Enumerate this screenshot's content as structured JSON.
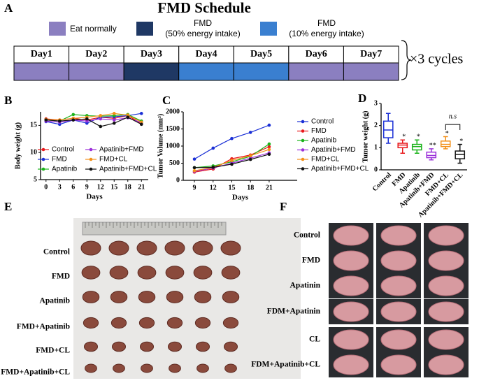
{
  "panel_labels": [
    "A",
    "B",
    "C",
    "D",
    "E",
    "F"
  ],
  "schedule": {
    "title": "FMD Schedule",
    "legend": [
      {
        "label": [
          "Eat normally"
        ],
        "color": "#8b7fc0"
      },
      {
        "label": [
          "FMD",
          "(50% energy intake)"
        ],
        "color": "#1f3864"
      },
      {
        "label": [
          "FMD",
          "(10% energy intake)"
        ],
        "color": "#3a7fd0"
      }
    ],
    "days": [
      "Day1",
      "Day2",
      "Day3",
      "Day4",
      "Day5",
      "Day6",
      "Day7"
    ],
    "day_colors": [
      "#8b7fc0",
      "#8b7fc0",
      "#1f3864",
      "#3a7fd0",
      "#3a7fd0",
      "#8b7fc0",
      "#8b7fc0"
    ],
    "cycles": "×3 cycles"
  },
  "chart_data": [
    {
      "type": "line",
      "xlabel": "Days",
      "ylabel": "Body weight (g)",
      "x": [
        0,
        3,
        6,
        9,
        12,
        15,
        18,
        21
      ],
      "xlim": [
        -1.2,
        22.5
      ],
      "xticks": [
        0,
        3,
        6,
        9,
        12,
        15,
        18,
        21
      ],
      "ylim": [
        5,
        17.5
      ],
      "yticks": [
        5,
        10,
        15
      ],
      "series": [
        {
          "name": "Control",
          "color": "#e8191c",
          "values": [
            16.2,
            16.0,
            16.3,
            16.0,
            16.5,
            16.3,
            16.8,
            15.3
          ]
        },
        {
          "name": "FMD",
          "color": "#1a2fd6",
          "values": [
            15.7,
            15.2,
            16.0,
            15.4,
            16.5,
            16.6,
            16.8,
            17.2
          ]
        },
        {
          "name": "Apatinib",
          "color": "#1ab31a",
          "values": [
            16.0,
            15.8,
            17.0,
            16.8,
            16.7,
            16.8,
            17.0,
            15.8
          ]
        },
        {
          "name": "Apatinib+FMD",
          "color": "#9b30d9",
          "values": [
            15.8,
            15.6,
            16.0,
            15.8,
            16.2,
            16.0,
            16.4,
            15.5
          ]
        },
        {
          "name": "FMD+CL",
          "color": "#f39019",
          "values": [
            16.1,
            16.0,
            16.3,
            16.5,
            16.8,
            17.2,
            16.9,
            15.6
          ]
        },
        {
          "name": "Apatinib+FMD+CL",
          "color": "#111111",
          "values": [
            16.0,
            15.8,
            16.0,
            16.2,
            14.8,
            15.4,
            16.5,
            15.2
          ]
        }
      ]
    },
    {
      "type": "line",
      "xlabel": "Days",
      "ylabel": "Tumor Volume (mm³)",
      "x": [
        9,
        12,
        15,
        18,
        21
      ],
      "xlim": [
        7.2,
        25.5
      ],
      "xticks": [
        9,
        12,
        15,
        18,
        21
      ],
      "ylim": [
        0,
        2000
      ],
      "yticks": [
        0,
        500,
        1000,
        1500,
        2000
      ],
      "series": [
        {
          "name": "Control",
          "color": "#1a2fd6",
          "values": [
            620,
            940,
            1220,
            1400,
            1610
          ]
        },
        {
          "name": "FMD",
          "color": "#e8191c",
          "values": [
            240,
            330,
            630,
            740,
            980
          ]
        },
        {
          "name": "Apatinib",
          "color": "#1ab31a",
          "values": [
            370,
            420,
            540,
            700,
            1060
          ]
        },
        {
          "name": "Apatinib+FMD",
          "color": "#9b30d9",
          "values": [
            260,
            360,
            500,
            650,
            800
          ]
        },
        {
          "name": "FMD+CL",
          "color": "#f39019",
          "values": [
            280,
            380,
            580,
            720,
            900
          ]
        },
        {
          "name": "Apatinib+FMD+CL",
          "color": "#111111",
          "values": [
            370,
            380,
            470,
            610,
            760
          ]
        }
      ]
    },
    {
      "type": "box",
      "ylabel": "Tumor weight (g)",
      "ylim": [
        0,
        3
      ],
      "yticks": [
        0,
        1,
        2,
        3
      ],
      "categories": [
        "Control",
        "FMD",
        "Apatinib",
        "Apatinib+FMD",
        "FMD+CL",
        "Apatinib+FMD+CL"
      ],
      "boxes": [
        {
          "min": 1.2,
          "q1": 1.45,
          "median": 1.8,
          "q3": 2.2,
          "max": 2.55,
          "color": "#1a2fd6"
        },
        {
          "min": 0.75,
          "q1": 1.0,
          "median": 1.12,
          "q3": 1.2,
          "max": 1.35,
          "color": "#e8191c"
        },
        {
          "min": 0.75,
          "q1": 0.9,
          "median": 1.05,
          "q3": 1.15,
          "max": 1.35,
          "color": "#1ab31a"
        },
        {
          "min": 0.45,
          "q1": 0.55,
          "median": 0.65,
          "q3": 0.8,
          "max": 0.95,
          "color": "#9b30d9"
        },
        {
          "min": 0.95,
          "q1": 1.05,
          "median": 1.15,
          "q3": 1.3,
          "max": 1.5,
          "color": "#f39019"
        },
        {
          "min": 0.3,
          "q1": 0.5,
          "median": 0.7,
          "q3": 0.85,
          "max": 1.15,
          "color": "#111111"
        }
      ],
      "significance": [
        null,
        "*",
        "*",
        "**",
        "*",
        "*"
      ],
      "bracket_label": "n.s"
    }
  ],
  "panel_e": {
    "labels": [
      "Control",
      "FMD",
      "Apatinib",
      "FMD+Apatinib",
      "FMD+CL",
      "FMD+Apatinib+CL"
    ]
  },
  "panel_f": {
    "labels": [
      "Control",
      "FMD",
      "Apatinin",
      "FDM+Apatinin",
      "CL",
      "FDM+Apatinib+CL"
    ]
  }
}
